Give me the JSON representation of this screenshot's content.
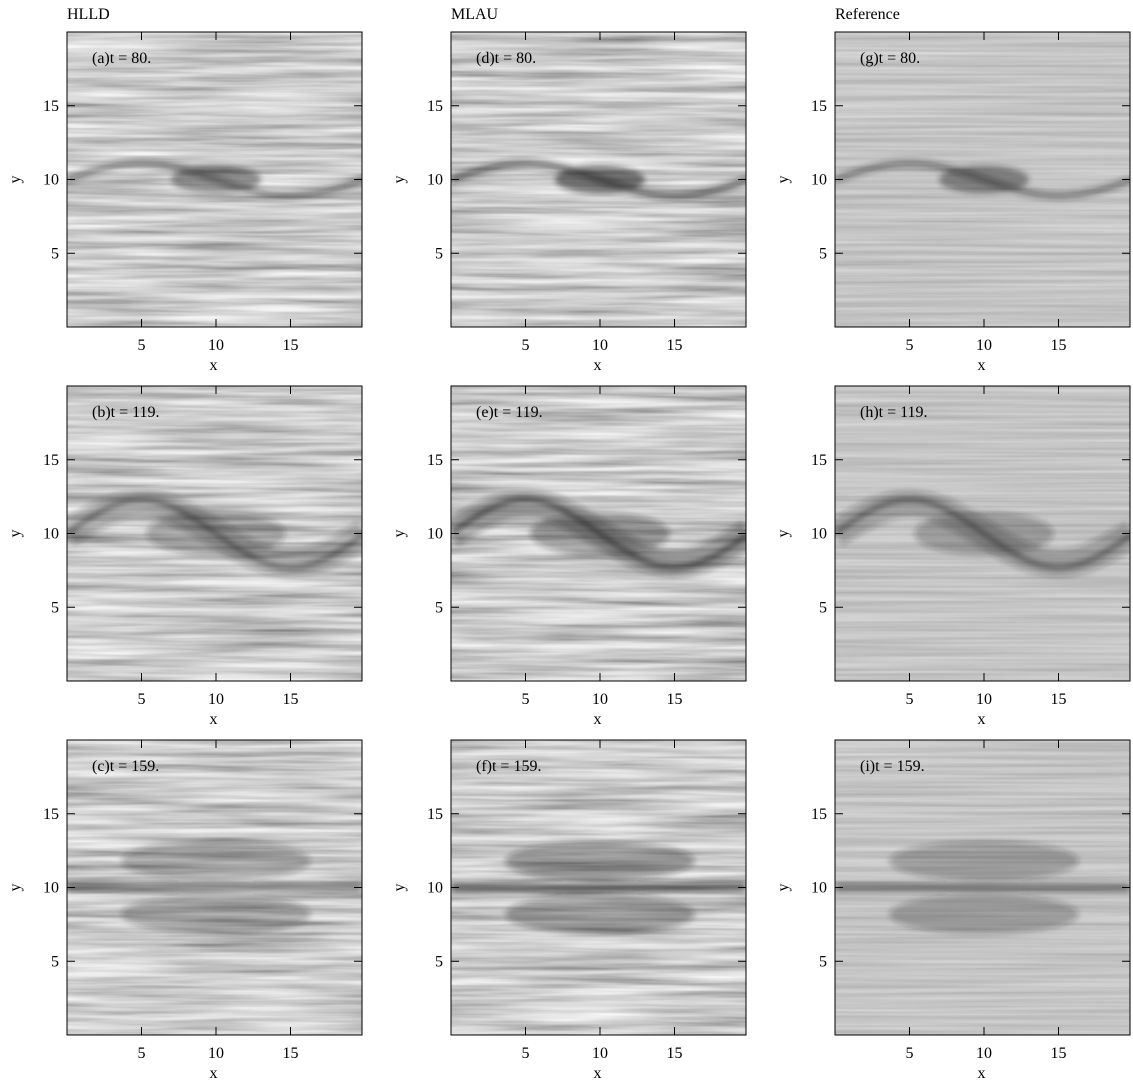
{
  "chart_data": [
    {
      "type": "image",
      "title": "HLLD",
      "label": "(a)t = 80.",
      "xlabel": "x",
      "ylabel": "y",
      "xlim": [
        0,
        19.8
      ],
      "ylim": [
        0,
        20
      ],
      "xticks": [
        5,
        10,
        15
      ],
      "yticks": [
        5,
        10,
        15
      ]
    },
    {
      "type": "image",
      "title": "MLAU",
      "label": "(d)t = 80.",
      "xlabel": "x",
      "ylabel": "y",
      "xlim": [
        0,
        19.8
      ],
      "ylim": [
        0,
        20
      ],
      "xticks": [
        5,
        10,
        15
      ],
      "yticks": [
        5,
        10,
        15
      ]
    },
    {
      "type": "image",
      "title": "Reference",
      "label": "(g)t = 80.",
      "xlabel": "x",
      "ylabel": "y",
      "xlim": [
        0,
        19.8
      ],
      "ylim": [
        0,
        20
      ],
      "xticks": [
        5,
        10,
        15
      ],
      "yticks": [
        5,
        10,
        15
      ]
    },
    {
      "type": "image",
      "label": "(b)t = 119.",
      "xlabel": "x",
      "ylabel": "y",
      "xlim": [
        0,
        19.8
      ],
      "ylim": [
        0,
        20
      ],
      "xticks": [
        5,
        10,
        15
      ],
      "yticks": [
        5,
        10,
        15
      ]
    },
    {
      "type": "image",
      "label": "(e)t = 119.",
      "xlabel": "x",
      "ylabel": "y",
      "xlim": [
        0,
        19.8
      ],
      "ylim": [
        0,
        20
      ],
      "xticks": [
        5,
        10,
        15
      ],
      "yticks": [
        5,
        10,
        15
      ]
    },
    {
      "type": "image",
      "label": "(h)t = 119.",
      "xlabel": "x",
      "ylabel": "y",
      "xlim": [
        0,
        19.8
      ],
      "ylim": [
        0,
        20
      ],
      "xticks": [
        5,
        10,
        15
      ],
      "yticks": [
        5,
        10,
        15
      ]
    },
    {
      "type": "image",
      "label": "(c)t = 159.",
      "xlabel": "x",
      "ylabel": "y",
      "xlim": [
        0,
        19.8
      ],
      "ylim": [
        0,
        20
      ],
      "xticks": [
        5,
        10,
        15
      ],
      "yticks": [
        5,
        10,
        15
      ]
    },
    {
      "type": "image",
      "label": "(f)t = 159.",
      "xlabel": "x",
      "ylabel": "y",
      "xlim": [
        0,
        19.8
      ],
      "ylim": [
        0,
        20
      ],
      "xticks": [
        5,
        10,
        15
      ],
      "yticks": [
        5,
        10,
        15
      ]
    },
    {
      "type": "image",
      "label": "(i)t = 159.",
      "xlabel": "x",
      "ylabel": "y",
      "xlim": [
        0,
        19.8
      ],
      "ylim": [
        0,
        20
      ],
      "xticks": [
        5,
        10,
        15
      ],
      "yticks": [
        5,
        10,
        15
      ]
    }
  ]
}
